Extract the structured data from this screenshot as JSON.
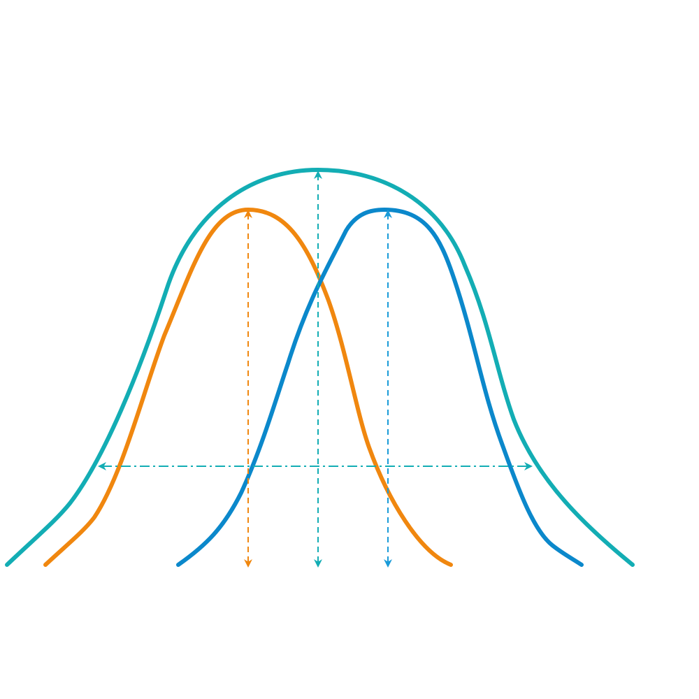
{
  "diagram": {
    "curves": [
      {
        "id": "wide-curve",
        "color": "#13adb4"
      },
      {
        "id": "left-curve",
        "color": "#f0870f"
      },
      {
        "id": "right-curve",
        "color": "#0b88cb"
      }
    ],
    "guides": {
      "left_peak_color": "#f0870f",
      "center_peak_color": "#13adb4",
      "right_peak_color": "#1a9bd8",
      "horizontal_spread_color": "#13adb4"
    }
  }
}
